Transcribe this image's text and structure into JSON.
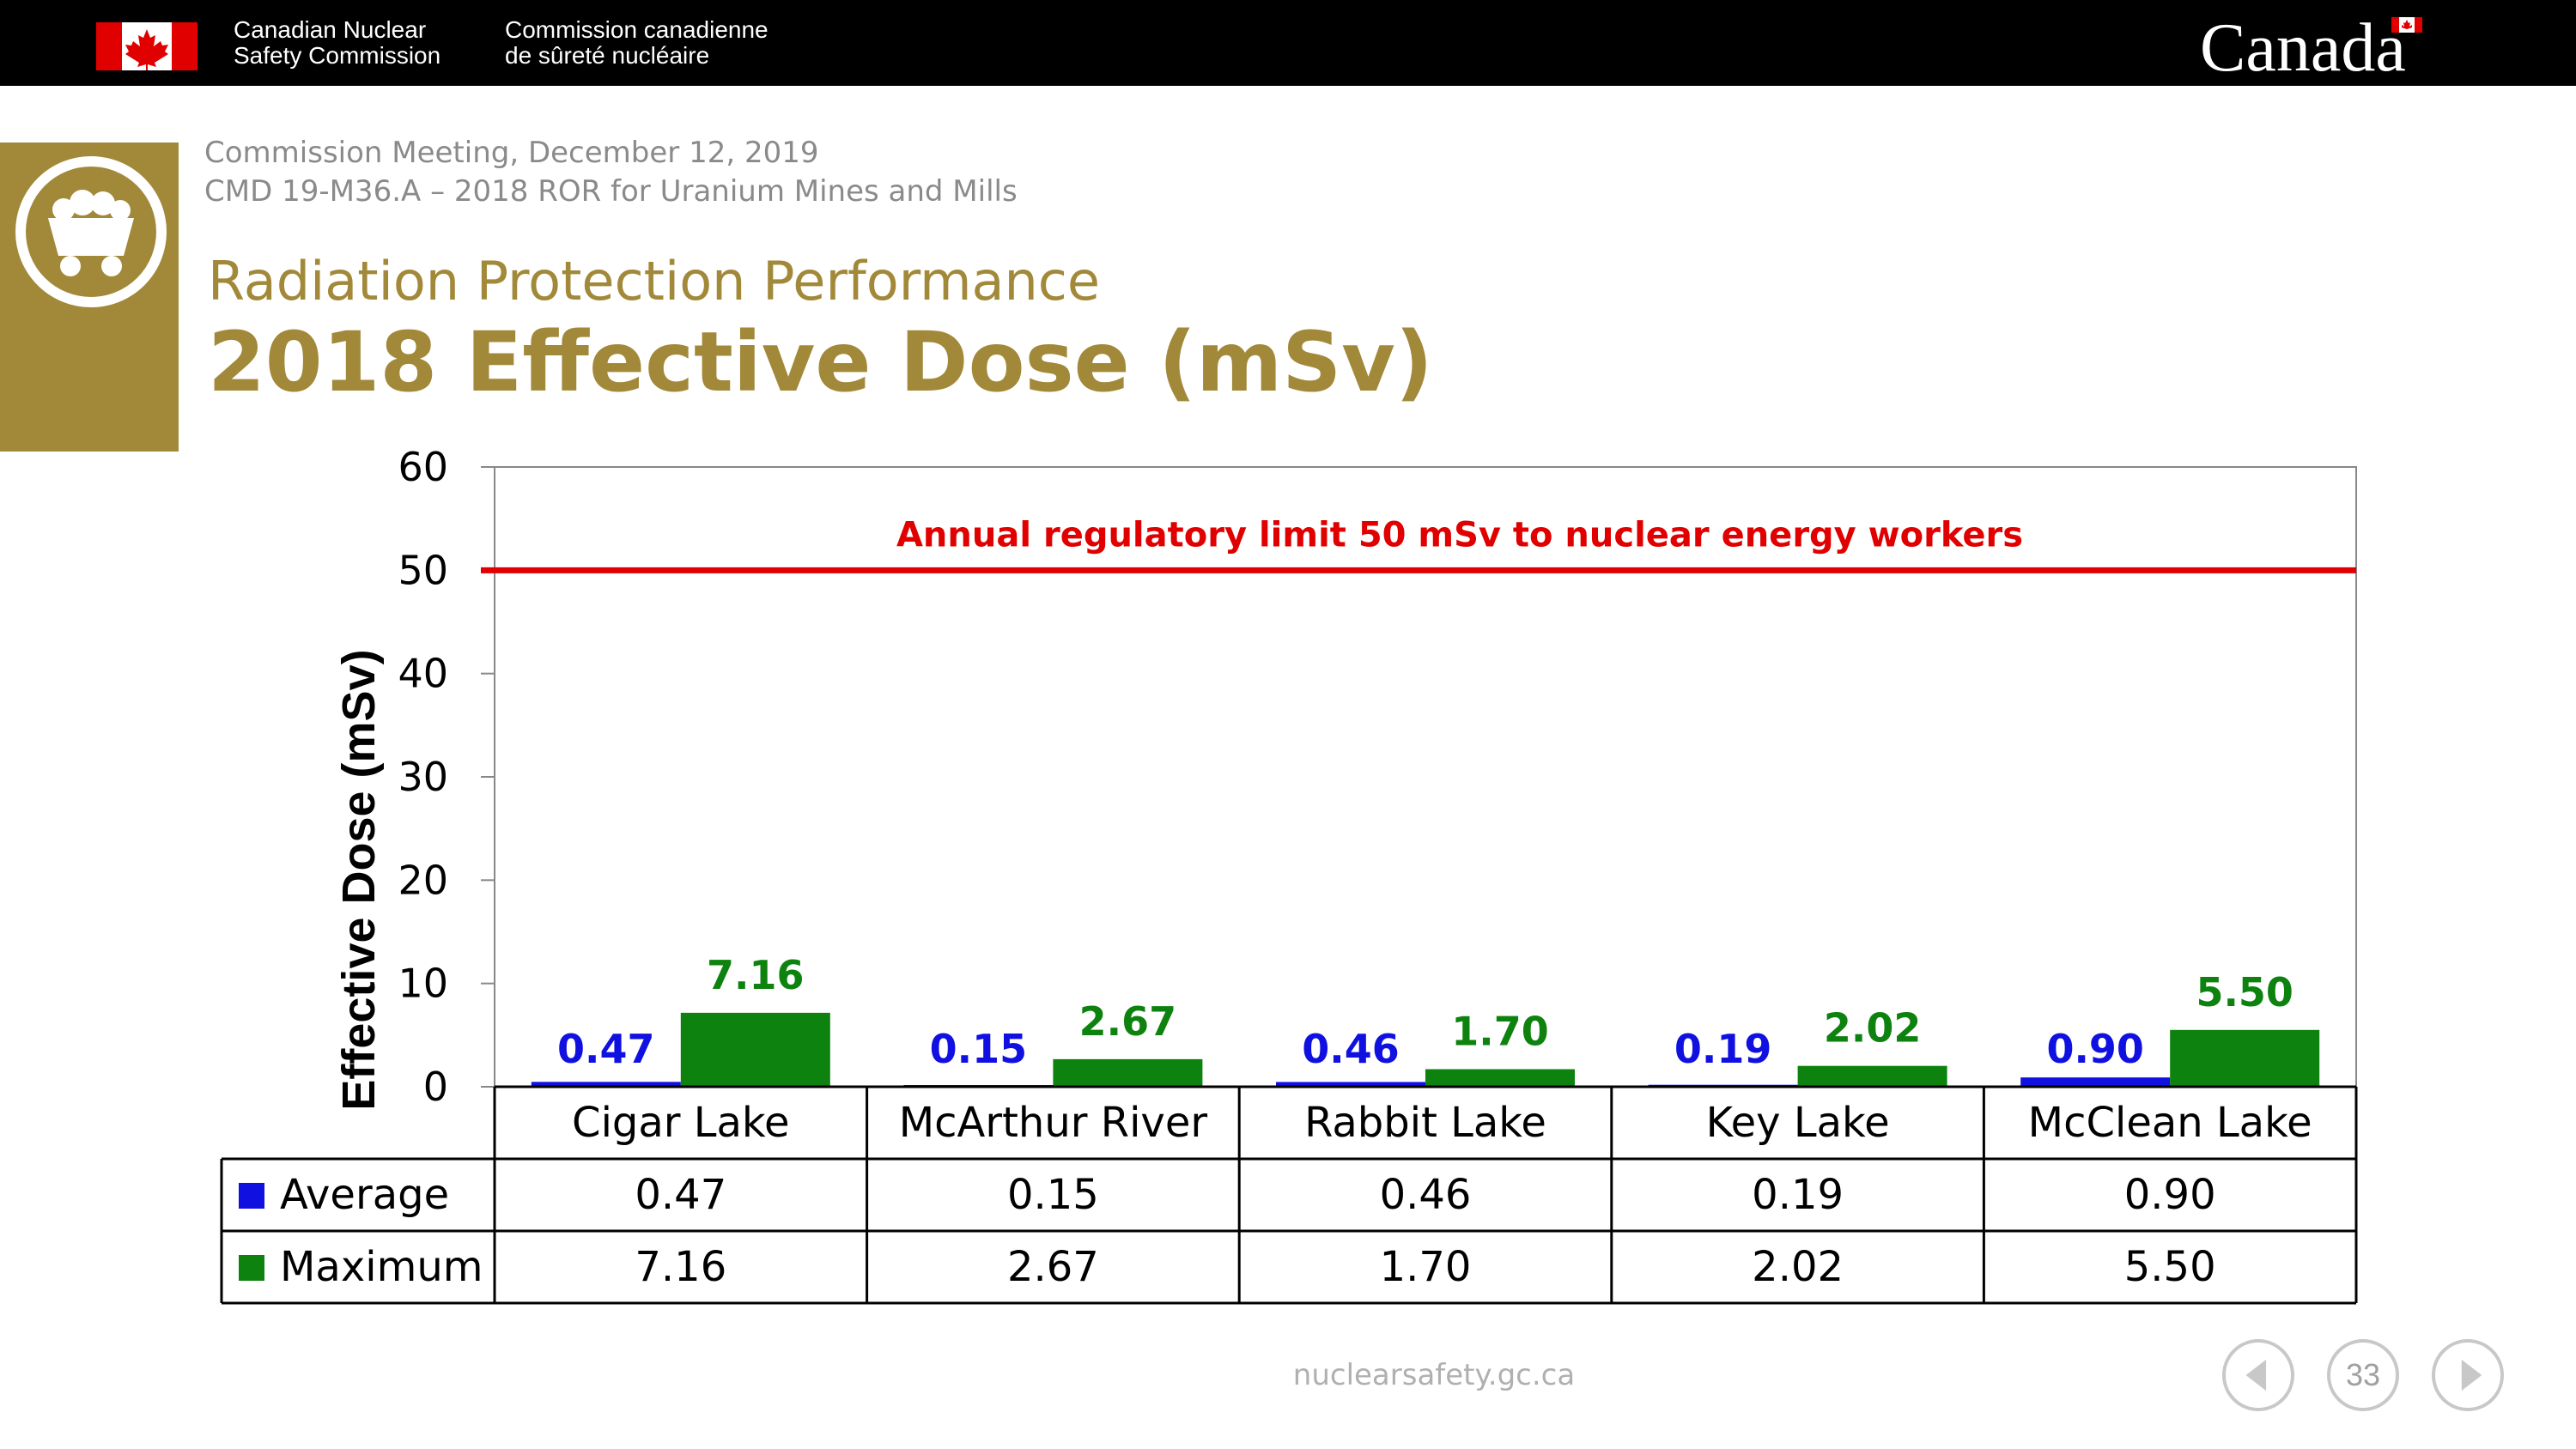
{
  "header": {
    "org_en_line1": "Canadian Nuclear",
    "org_en_line2": "Safety Commission",
    "org_fr_line1": "Commission canadienne",
    "org_fr_line2": "de sûreté nucléaire",
    "wordmark": "Canada"
  },
  "slide": {
    "meeting": "Commission Meeting, December 12, 2019",
    "cmd": "CMD 19-M36.A – 2018 ROR for Uranium Mines and Mills",
    "subtitle": "Radiation Protection Performance",
    "title": "2018 Effective Dose (mSv)"
  },
  "chart_data": {
    "type": "bar",
    "title": "",
    "xlabel": "",
    "ylabel": "Effective Dose (mSv)",
    "ylim": [
      0,
      60
    ],
    "yticks": [
      0,
      10,
      20,
      30,
      40,
      50,
      60
    ],
    "categories": [
      "Cigar Lake",
      "McArthur River",
      "Rabbit Lake",
      "Key Lake",
      "McClean Lake"
    ],
    "series": [
      {
        "name": "Average",
        "color": "#1010e0",
        "values": [
          0.47,
          0.15,
          0.46,
          0.19,
          0.9
        ],
        "labels": [
          "0.47",
          "0.15",
          "0.46",
          "0.19",
          "0.90"
        ]
      },
      {
        "name": "Maximum",
        "color": "#0e820e",
        "values": [
          7.16,
          2.67,
          1.7,
          2.02,
          5.5
        ],
        "labels": [
          "7.16",
          "2.67",
          "1.70",
          "2.02",
          "5.50"
        ]
      }
    ],
    "reference_line": {
      "value": 50,
      "label": "Annual regulatory limit 50 mSv to nuclear energy workers",
      "color": "#e00000"
    },
    "grid": false,
    "legend": "data-table"
  },
  "footer": {
    "url": "nuclearsafety.gc.ca",
    "page_number": "33"
  },
  "colors": {
    "gold": "#a2893a",
    "header_bg": "#000000",
    "canada_red": "#e00000"
  }
}
